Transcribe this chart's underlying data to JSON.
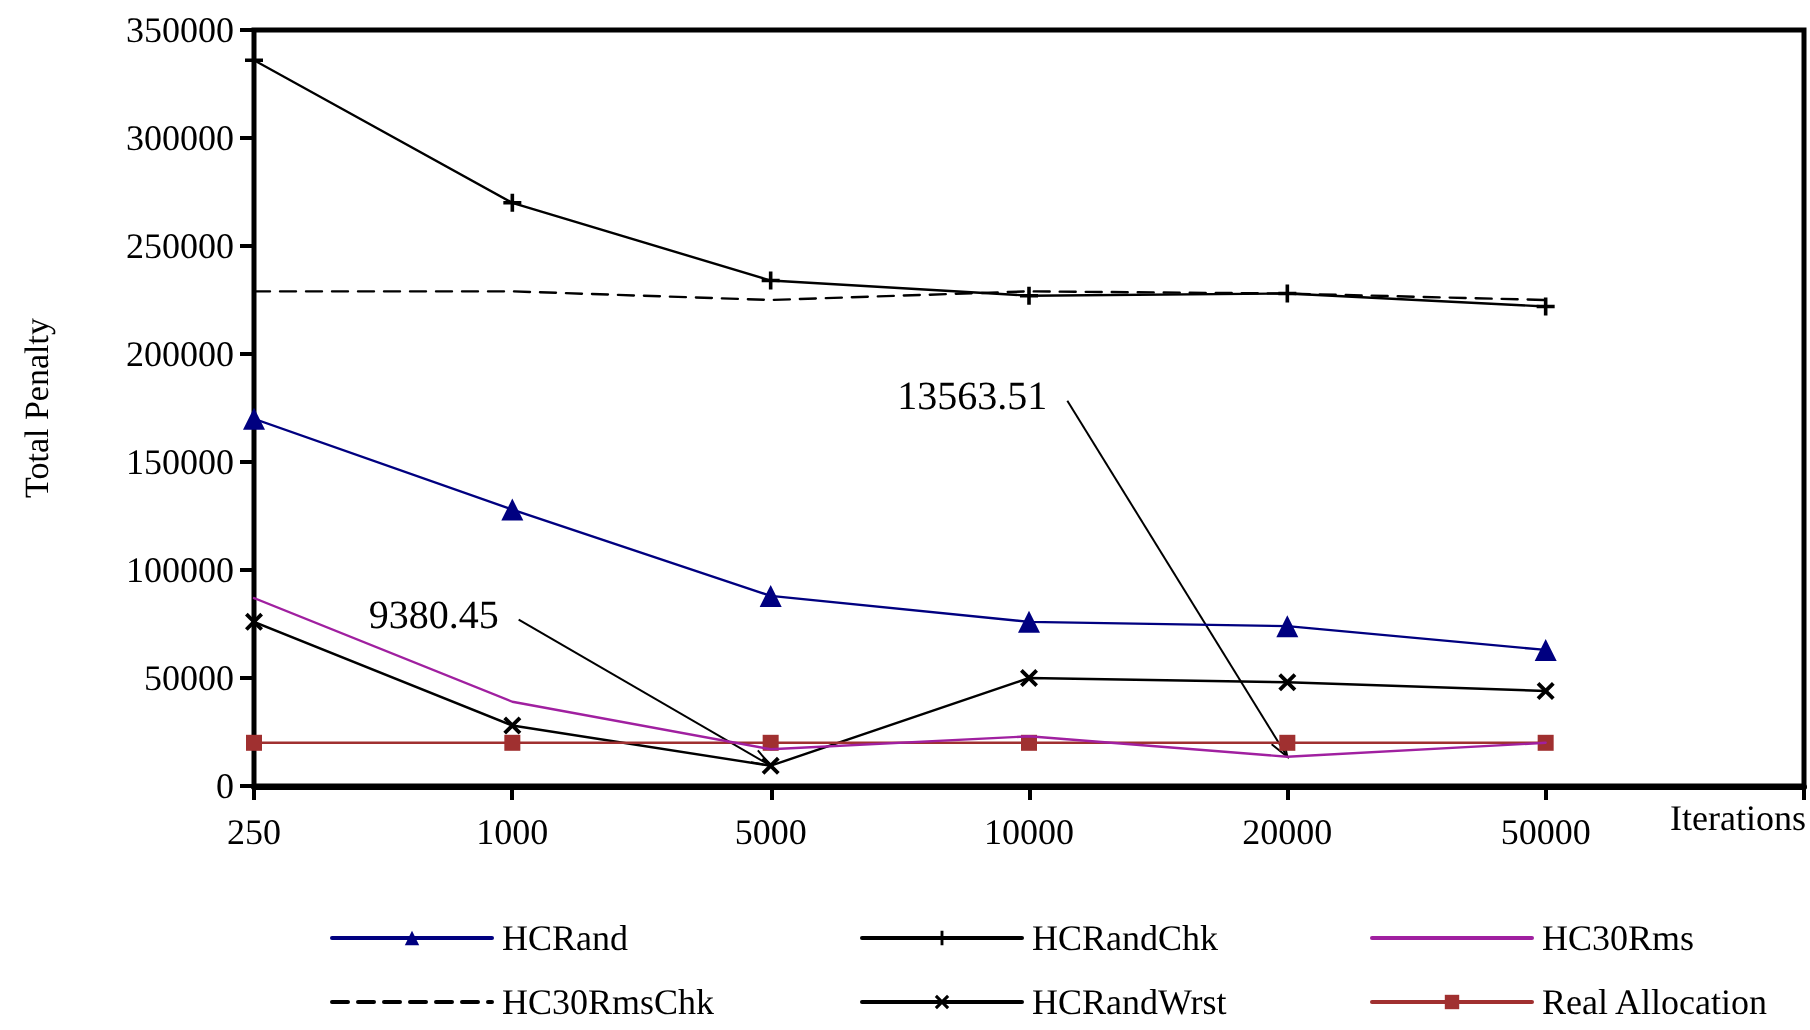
{
  "chart_data": {
    "type": "line",
    "categories": [
      "250",
      "1000",
      "5000",
      "10000",
      "20000",
      "50000"
    ],
    "xlabel": "Iterations",
    "ylabel": "Total Penalty",
    "ylim": [
      0,
      350000
    ],
    "yticks": [
      0,
      50000,
      100000,
      150000,
      200000,
      250000,
      300000,
      350000
    ],
    "grid": false,
    "legend": "bottom",
    "series": [
      {
        "name": "HCRand",
        "color": "#000080",
        "marker": "triangle",
        "line_style": "solid",
        "values": [
          170000,
          128000,
          88000,
          76000,
          74000,
          63000
        ]
      },
      {
        "name": "HC30RmsChk",
        "color": "#000000",
        "marker": "none",
        "line_style": "dashed",
        "values": [
          229000,
          229000,
          225000,
          229000,
          228000,
          225000
        ]
      },
      {
        "name": "HCRandChk",
        "color": "#000000",
        "marker": "plus",
        "line_style": "solid",
        "values": [
          336000,
          270000,
          234000,
          227000,
          228000,
          222000
        ]
      },
      {
        "name": "HCRandWrst",
        "color": "#000000",
        "marker": "cross",
        "line_style": "solid",
        "values": [
          76000,
          28000,
          9380.45,
          50000,
          48000,
          44000
        ]
      },
      {
        "name": "HC30Rms",
        "color": "#a020a0",
        "marker": "none",
        "line_style": "solid",
        "values": [
          87000,
          39000,
          17000,
          23000,
          13563.51,
          20000
        ]
      },
      {
        "name": "Real Allocation",
        "color": "#a03030",
        "marker": "square",
        "line_style": "solid",
        "values": [
          20000,
          20000,
          20000,
          20000,
          20000,
          20000
        ]
      }
    ],
    "annotations": [
      {
        "text": "9380.45",
        "x": "5000",
        "y": 9380.45
      },
      {
        "text": "13563.51",
        "x": "20000",
        "y": 13563.51
      }
    ]
  }
}
